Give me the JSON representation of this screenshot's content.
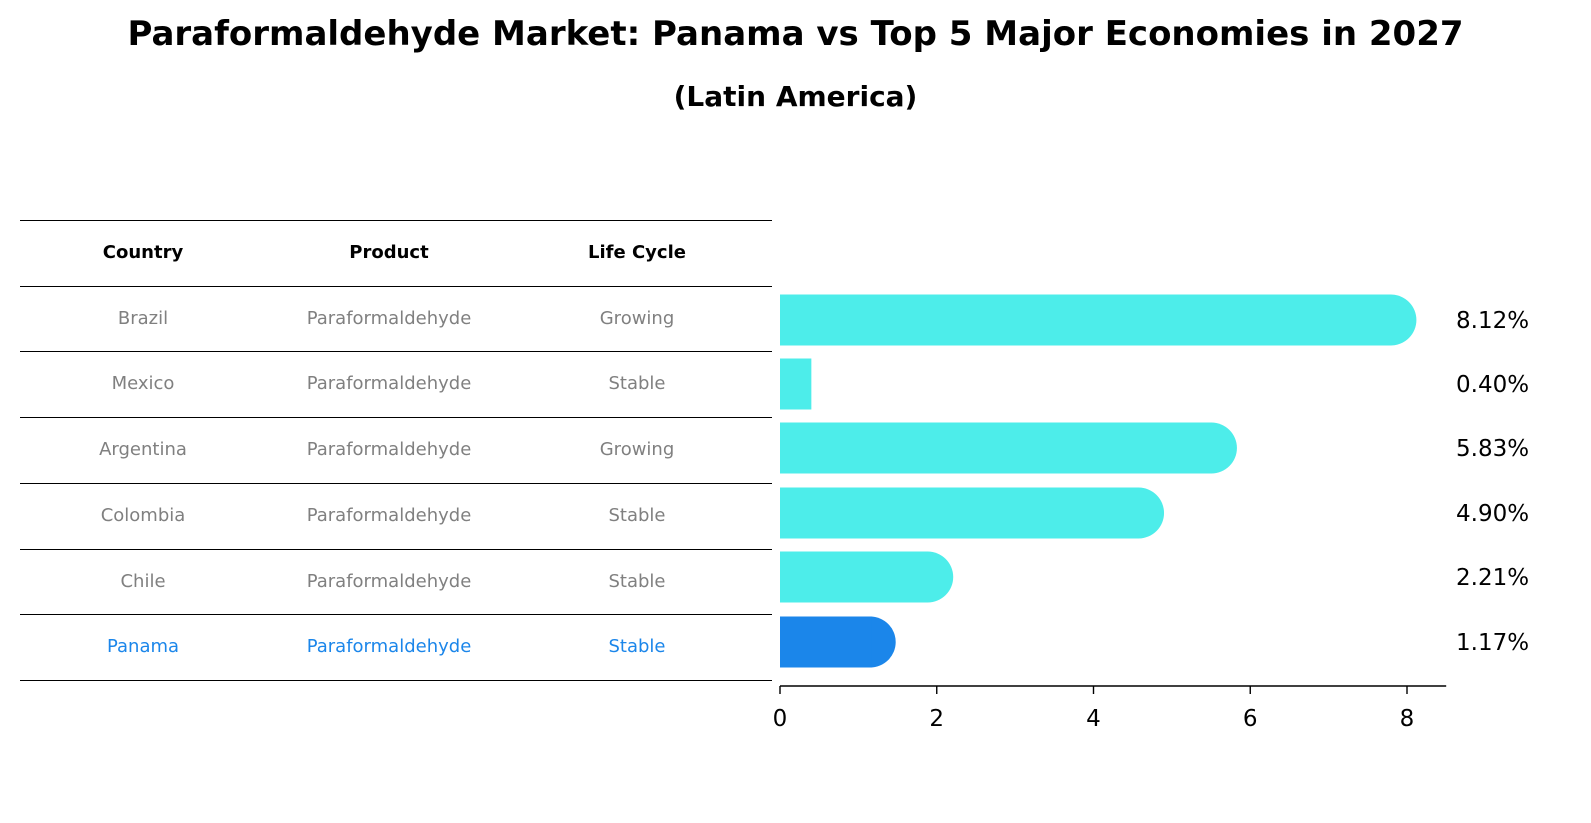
{
  "title": "Paraformaldehyde Market: Panama vs Top 5 Major Economies in 2027",
  "subtitle": "(Latin America)",
  "table": {
    "headers": [
      "Country",
      "Product",
      "Life Cycle"
    ],
    "rows": [
      [
        "Brazil",
        "Paraformaldehyde",
        "Growing"
      ],
      [
        "Mexico",
        "Paraformaldehyde",
        "Stable"
      ],
      [
        "Argentina",
        "Paraformaldehyde",
        "Growing"
      ],
      [
        "Colombia",
        "Paraformaldehyde",
        "Stable"
      ],
      [
        "Chile",
        "Paraformaldehyde",
        "Stable"
      ],
      [
        "Panama",
        "Paraformaldehyde",
        "Stable"
      ]
    ],
    "highlight_row": 5
  },
  "colors": {
    "bar": "#4dedea",
    "highlight": "#1b86ea",
    "text_gray": "#808080"
  },
  "chart_data": {
    "type": "bar",
    "orientation": "horizontal",
    "categories": [
      "Brazil",
      "Mexico",
      "Argentina",
      "Colombia",
      "Chile",
      "Panama"
    ],
    "values": [
      8.12,
      0.4,
      5.83,
      4.9,
      2.21,
      1.17
    ],
    "value_labels": [
      "8.12%",
      "0.40%",
      "5.83%",
      "4.90%",
      "2.21%",
      "1.17%"
    ],
    "xlim": [
      0,
      8.5
    ],
    "xticks": [
      0,
      2,
      4,
      6,
      8
    ],
    "grid": false,
    "highlight_index": 5
  }
}
